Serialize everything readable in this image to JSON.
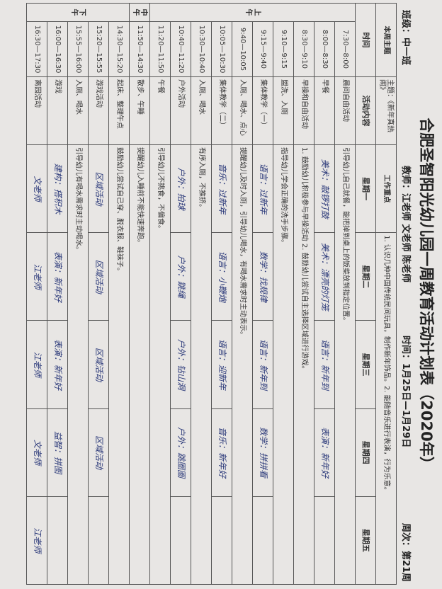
{
  "header": {
    "title": "合肥圣智阳光幼儿园一周教育活动计划表（2020年）",
    "class": "班级：中一班",
    "teachers": "教师：江老师 文老师 陈老师",
    "date": "时间：1月25日—1月29日",
    "week": "周次：第21周"
  },
  "theme": {
    "label": "本周主题",
    "theme": "主题：《新年真热闹》",
    "focus_label": "工作重点",
    "focus": "1. 认识几种中国传统民间玩具，制作新年饰品。2. 能随音乐进行表演，行为乐意。"
  },
  "table": {
    "columns": [
      "时间",
      "活动内容",
      "星期一",
      "星期二",
      "星期三",
      "星期四",
      "星期五"
    ],
    "rows": [
      {
        "period": "上午",
        "time": "7:30—8:00",
        "activity": "晨间自由活动",
        "note": "引导幼儿自己就餐，能把掉到桌上的饭菜放到指定位置。"
      },
      {
        "time": "8:00—8:30",
        "activity": "早餐",
        "cells": [
          "美术：敲锣打鼓",
          "美术：漂亮的灯笼",
          "语言：新年到",
          "表演：新年好",
          null
        ]
      },
      {
        "time": "8:30—9:10",
        "activity": "早操和自由活动",
        "note": "1. 鼓励幼儿积极参与早操活动 2. 鼓励幼儿尝试自主选择区域进行游戏。"
      },
      {
        "time": "9:10—9:15",
        "activity": "盥洗、入厕",
        "note": "指导幼儿学会正确的洗手步骤。"
      },
      {
        "time": "9:15—9:40",
        "activity": "集体教学（一）",
        "cells": [
          "语言：过新年",
          "数学：找规律",
          "语言：新年到",
          "数学：拼拼看",
          null
        ]
      },
      {
        "time": "9:40—10:05",
        "activity": "入厕、喝水、点心",
        "note": "提醒幼儿及时入厕，引导幼儿喝水，有喝水需求时主动表示。"
      },
      {
        "time": "10:05—10:30",
        "activity": "集体教学（二）",
        "cells": [
          "音乐：过新年",
          "语言：小鞭炮",
          "语言：迎新年",
          "音乐：新年好",
          null
        ]
      },
      {
        "time": "10:30—10:40",
        "activity": "入厕、喝水",
        "note": "有序入厕，不推挤。"
      },
      {
        "time": "10:40—11:20",
        "activity": "户外活动",
        "cells": [
          "户外：拍球",
          "户外：跳绳",
          "户外：钻山洞",
          "户外：跳圈圈",
          null
        ]
      },
      {
        "time": "11:20—11:50",
        "activity": "午餐",
        "note": "引导幼儿不挑食，不偏食。"
      },
      {
        "period": "中午",
        "time": "11:50—14:30",
        "activity": "散步、午睡",
        "note": "提醒幼儿入睡前不能快速奔跑。"
      },
      {
        "period": "下午",
        "time": "14:30—15:20",
        "activity": "起床、整理午点",
        "note": "鼓励幼儿尝试自己穿、脱衣服、鞋袜子。"
      },
      {
        "time": "15:20—15:55",
        "activity": "游戏活动",
        "cells": [
          "区域活动",
          "区域活动",
          "区域活动",
          "区域活动",
          null
        ]
      },
      {
        "time": "15:55—16:00",
        "activity": "入厕、喝水",
        "note": "引导幼儿有喝水需求时主动喝水。"
      },
      {
        "time": "16:00—16:30",
        "activity": "游戏",
        "cells": [
          "建构：搭积木",
          "表演：新年好",
          "表演：新年好",
          "益智：拼图",
          null
        ]
      },
      {
        "time": "16:30—17:30",
        "activity": "离园活动",
        "cells": [
          "文老师",
          "江老师",
          "江老师",
          "文老师",
          "江老师"
        ]
      }
    ]
  }
}
